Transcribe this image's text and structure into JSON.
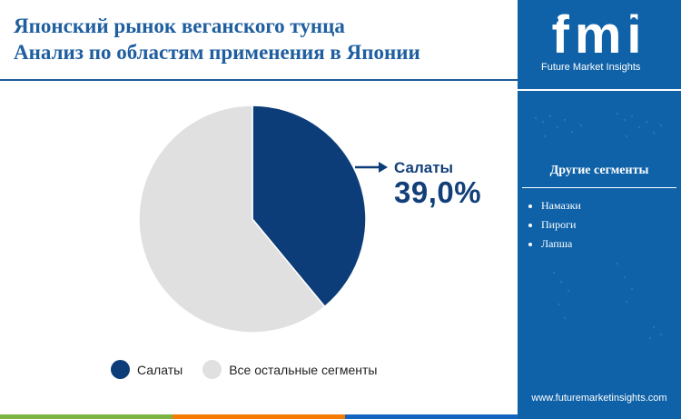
{
  "header": {
    "title_line1": "Японский рынок веганского тунца",
    "title_line2": "Анализ по областям применения в Японии"
  },
  "chart_data": {
    "type": "pie",
    "categories": [
      "Салаты",
      "Все остальные сегменты"
    ],
    "values": [
      39.0,
      61.0
    ],
    "colors": [
      "#0d3d78",
      "#e0e0e0"
    ],
    "legend_placement": "bottom",
    "callout": {
      "label": "Салаты",
      "value": "39,0%"
    }
  },
  "legend": {
    "items": [
      {
        "label": "Салаты",
        "color": "#0d3d78"
      },
      {
        "label": "Все остальные сегменты",
        "color": "#e0e0e0"
      }
    ]
  },
  "sidebar": {
    "logo_text": "fmi",
    "tagline": "Future Market Insights",
    "other_segments_title": "Другие сегменты",
    "other_segments": [
      "Намазки",
      "Пироги",
      "Лапша"
    ],
    "website": "www.futuremarketinsights.com"
  },
  "colors": {
    "sidebar_bg": "#0f62a8",
    "title": "#1f5fa0",
    "accent_dark": "#0d3d78",
    "bar_green": "#7cb342",
    "bar_orange": "#f57c00",
    "bar_blue": "#1565c0"
  }
}
